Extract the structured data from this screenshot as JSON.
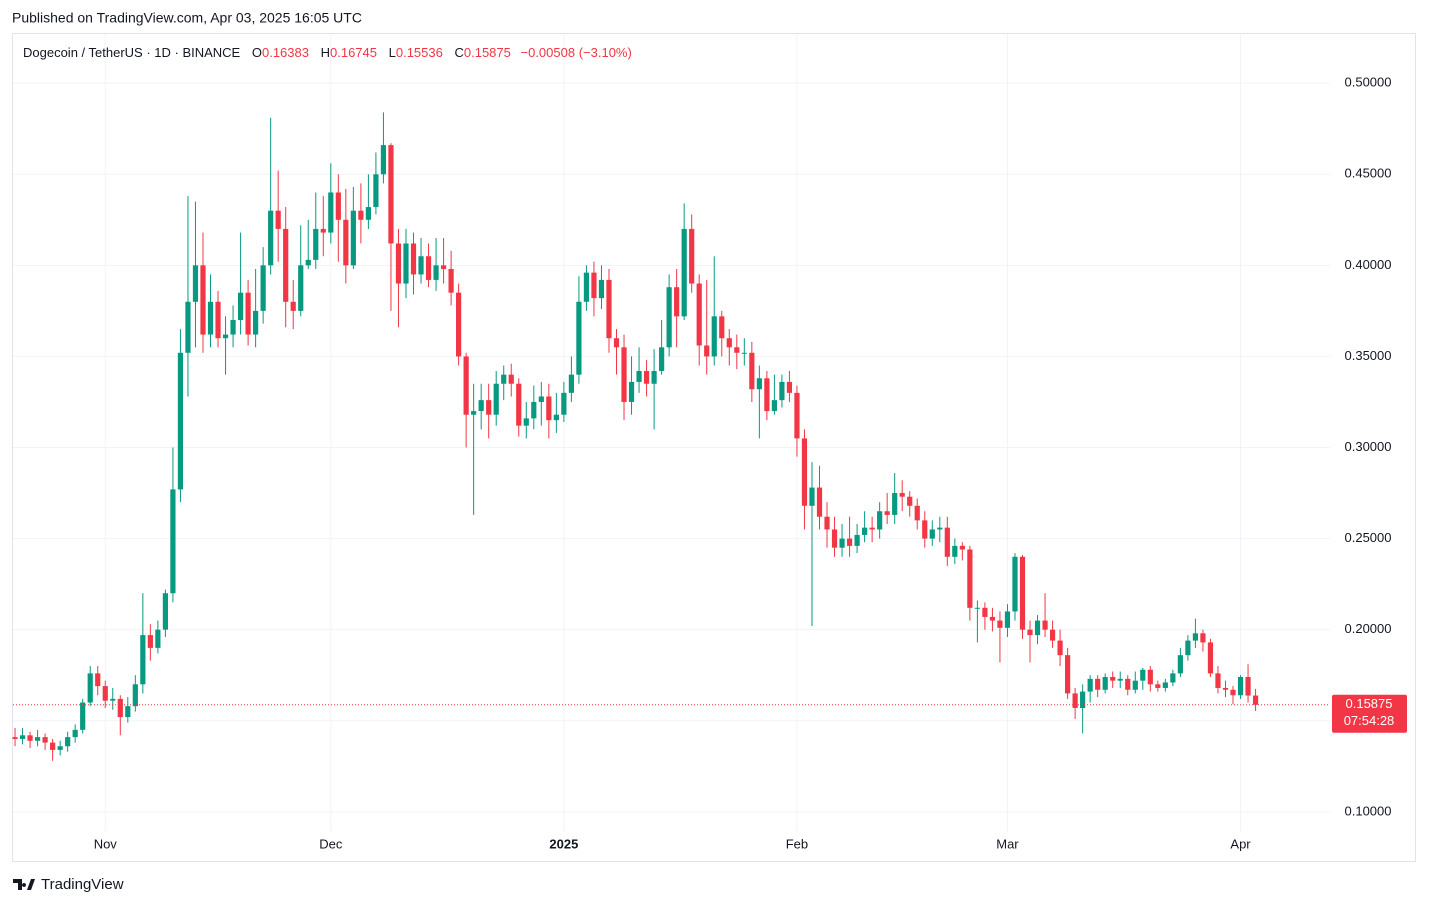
{
  "published": "Published on TradingView.com, Apr 03, 2025 16:05 UTC",
  "brand": "TradingView",
  "chart_data": {
    "type": "candlestick",
    "title": "Dogecoin / TetherUS · 1D · BINANCE",
    "quote": {
      "o_label": "O",
      "o": "0.16383",
      "h_label": "H",
      "h": "0.16745",
      "l_label": "L",
      "l": "0.15536",
      "c_label": "C",
      "c": "0.15875",
      "change": "−0.00508 (−3.10%)"
    },
    "up_color": "#089981",
    "down_color": "#f23645",
    "last_price": 0.15875,
    "countdown": "07:54:28",
    "grid": true,
    "xlim": [
      -0.27,
      174.9
    ],
    "xticks": [
      {
        "value": 12,
        "label": "Nov"
      },
      {
        "value": 42,
        "label": "Dec"
      },
      {
        "value": 73,
        "label": "2025"
      },
      {
        "value": 104,
        "label": "Feb"
      },
      {
        "value": 132,
        "label": "Mar"
      },
      {
        "value": 163,
        "label": "Apr"
      }
    ],
    "ylim": [
      0.073,
      0.527
    ],
    "yticks": [
      {
        "value": 0.1,
        "label": "0.10000"
      },
      {
        "value": 0.15,
        "label": "0.15000"
      },
      {
        "value": 0.2,
        "label": "0.20000"
      },
      {
        "value": 0.25,
        "label": "0.25000"
      },
      {
        "value": 0.3,
        "label": "0.30000"
      },
      {
        "value": 0.35,
        "label": "0.35000"
      },
      {
        "value": 0.4,
        "label": "0.40000"
      },
      {
        "value": 0.45,
        "label": "0.45000"
      },
      {
        "value": 0.5,
        "label": "0.50000"
      }
    ],
    "open": [
      0.141,
      0.14,
      0.142,
      0.139,
      0.141,
      0.138,
      0.134,
      0.136,
      0.141,
      0.145,
      0.16,
      0.176,
      0.169,
      0.161,
      0.162,
      0.152,
      0.158,
      0.17,
      0.197,
      0.19,
      0.2,
      0.22,
      0.277,
      0.352,
      0.38,
      0.4,
      0.362,
      0.38,
      0.36,
      0.362,
      0.37,
      0.385,
      0.362,
      0.375,
      0.4,
      0.43,
      0.42,
      0.38,
      0.375,
      0.4,
      0.403,
      0.42,
      0.418,
      0.44,
      0.425,
      0.4,
      0.43,
      0.425,
      0.432,
      0.45,
      0.466,
      0.412,
      0.39,
      0.412,
      0.395,
      0.405,
      0.392,
      0.4,
      0.398,
      0.385,
      0.35,
      0.318,
      0.32,
      0.326,
      0.318,
      0.335,
      0.34,
      0.335,
      0.312,
      0.316,
      0.325,
      0.328,
      0.315,
      0.318,
      0.33,
      0.34,
      0.38,
      0.396,
      0.382,
      0.392,
      0.36,
      0.355,
      0.325,
      0.336,
      0.342,
      0.335,
      0.342,
      0.355,
      0.388,
      0.372,
      0.42,
      0.39,
      0.356,
      0.35,
      0.372,
      0.36,
      0.355,
      0.352,
      0.352,
      0.332,
      0.338,
      0.32,
      0.326,
      0.336,
      0.33,
      0.305,
      0.268,
      0.278,
      0.262,
      0.255,
      0.245,
      0.25,
      0.246,
      0.252,
      0.256,
      0.255,
      0.265,
      0.263,
      0.275,
      0.273,
      0.268,
      0.26,
      0.25,
      0.255,
      0.256,
      0.24,
      0.246,
      0.244,
      0.212,
      0.212,
      0.207,
      0.205,
      0.201,
      0.21,
      0.24,
      0.2,
      0.197,
      0.205,
      0.2,
      0.194,
      0.186,
      0.165,
      0.157,
      0.166,
      0.173,
      0.167,
      0.174,
      0.172,
      0.173,
      0.167,
      0.172,
      0.178,
      0.17,
      0.168,
      0.171,
      0.176,
      0.186,
      0.194,
      0.198,
      0.193,
      0.176,
      0.168,
      0.167,
      0.164,
      0.174,
      0.16383
    ],
    "high": [
      0.146,
      0.146,
      0.144,
      0.145,
      0.143,
      0.14,
      0.139,
      0.144,
      0.148,
      0.162,
      0.18,
      0.18,
      0.172,
      0.168,
      0.164,
      0.163,
      0.175,
      0.22,
      0.203,
      0.205,
      0.222,
      0.3,
      0.365,
      0.438,
      0.435,
      0.418,
      0.395,
      0.386,
      0.372,
      0.378,
      0.418,
      0.392,
      0.398,
      0.41,
      0.481,
      0.452,
      0.432,
      0.392,
      0.422,
      0.425,
      0.44,
      0.438,
      0.456,
      0.45,
      0.442,
      0.443,
      0.445,
      0.45,
      0.462,
      0.484,
      0.467,
      0.42,
      0.42,
      0.418,
      0.415,
      0.412,
      0.415,
      0.415,
      0.408,
      0.39,
      0.352,
      0.335,
      0.335,
      0.335,
      0.342,
      0.345,
      0.346,
      0.338,
      0.325,
      0.334,
      0.336,
      0.335,
      0.33,
      0.336,
      0.35,
      0.394,
      0.4,
      0.402,
      0.4,
      0.398,
      0.365,
      0.362,
      0.35,
      0.355,
      0.348,
      0.354,
      0.37,
      0.395,
      0.398,
      0.434,
      0.428,
      0.395,
      0.392,
      0.405,
      0.375,
      0.365,
      0.362,
      0.36,
      0.358,
      0.345,
      0.342,
      0.34,
      0.34,
      0.342,
      0.334,
      0.31,
      0.292,
      0.29,
      0.27,
      0.262,
      0.258,
      0.262,
      0.258,
      0.265,
      0.262,
      0.27,
      0.275,
      0.286,
      0.282,
      0.276,
      0.272,
      0.265,
      0.26,
      0.262,
      0.262,
      0.25,
      0.248,
      0.246,
      0.216,
      0.215,
      0.212,
      0.21,
      0.214,
      0.242,
      0.241,
      0.205,
      0.208,
      0.22,
      0.205,
      0.2,
      0.19,
      0.168,
      0.17,
      0.175,
      0.175,
      0.176,
      0.177,
      0.177,
      0.175,
      0.177,
      0.179,
      0.18,
      0.172,
      0.173,
      0.178,
      0.19,
      0.197,
      0.206,
      0.2,
      0.195,
      0.18,
      0.172,
      0.169,
      0.175,
      0.181,
      0.16745
    ],
    "low": [
      0.136,
      0.137,
      0.135,
      0.136,
      0.134,
      0.128,
      0.131,
      0.133,
      0.138,
      0.143,
      0.158,
      0.164,
      0.157,
      0.156,
      0.142,
      0.149,
      0.155,
      0.165,
      0.183,
      0.187,
      0.196,
      0.215,
      0.27,
      0.328,
      0.355,
      0.352,
      0.355,
      0.355,
      0.34,
      0.355,
      0.362,
      0.356,
      0.355,
      0.368,
      0.395,
      0.402,
      0.366,
      0.365,
      0.372,
      0.398,
      0.398,
      0.405,
      0.412,
      0.402,
      0.39,
      0.398,
      0.412,
      0.42,
      0.428,
      0.445,
      0.375,
      0.366,
      0.382,
      0.384,
      0.39,
      0.388,
      0.386,
      0.39,
      0.378,
      0.345,
      0.3,
      0.263,
      0.31,
      0.305,
      0.312,
      0.326,
      0.328,
      0.306,
      0.305,
      0.31,
      0.312,
      0.305,
      0.308,
      0.314,
      0.325,
      0.335,
      0.375,
      0.372,
      0.376,
      0.352,
      0.34,
      0.315,
      0.318,
      0.33,
      0.328,
      0.31,
      0.34,
      0.35,
      0.355,
      0.37,
      0.385,
      0.345,
      0.34,
      0.345,
      0.35,
      0.345,
      0.343,
      0.345,
      0.325,
      0.305,
      0.315,
      0.318,
      0.322,
      0.325,
      0.295,
      0.255,
      0.202,
      0.255,
      0.245,
      0.24,
      0.24,
      0.24,
      0.242,
      0.248,
      0.248,
      0.25,
      0.258,
      0.258,
      0.265,
      0.262,
      0.255,
      0.245,
      0.246,
      0.248,
      0.235,
      0.236,
      0.238,
      0.205,
      0.193,
      0.2,
      0.199,
      0.182,
      0.196,
      0.205,
      0.195,
      0.182,
      0.192,
      0.196,
      0.19,
      0.18,
      0.162,
      0.151,
      0.143,
      0.16,
      0.163,
      0.165,
      0.168,
      0.168,
      0.164,
      0.165,
      0.167,
      0.166,
      0.166,
      0.166,
      0.169,
      0.174,
      0.183,
      0.19,
      0.188,
      0.174,
      0.165,
      0.163,
      0.159,
      0.162,
      0.16,
      0.15536
    ],
    "close": [
      0.14,
      0.142,
      0.139,
      0.141,
      0.138,
      0.134,
      0.136,
      0.141,
      0.145,
      0.16,
      0.176,
      0.169,
      0.161,
      0.162,
      0.152,
      0.158,
      0.17,
      0.197,
      0.19,
      0.2,
      0.22,
      0.277,
      0.352,
      0.38,
      0.4,
      0.362,
      0.38,
      0.36,
      0.362,
      0.37,
      0.385,
      0.362,
      0.375,
      0.4,
      0.43,
      0.42,
      0.38,
      0.375,
      0.4,
      0.403,
      0.42,
      0.418,
      0.44,
      0.425,
      0.4,
      0.43,
      0.425,
      0.432,
      0.45,
      0.466,
      0.412,
      0.39,
      0.412,
      0.395,
      0.405,
      0.392,
      0.4,
      0.398,
      0.385,
      0.35,
      0.318,
      0.32,
      0.326,
      0.318,
      0.335,
      0.34,
      0.335,
      0.312,
      0.316,
      0.325,
      0.328,
      0.315,
      0.318,
      0.33,
      0.34,
      0.38,
      0.396,
      0.382,
      0.392,
      0.36,
      0.355,
      0.325,
      0.336,
      0.342,
      0.335,
      0.342,
      0.355,
      0.388,
      0.372,
      0.42,
      0.39,
      0.356,
      0.35,
      0.372,
      0.36,
      0.355,
      0.352,
      0.352,
      0.332,
      0.338,
      0.32,
      0.326,
      0.336,
      0.33,
      0.305,
      0.268,
      0.278,
      0.262,
      0.255,
      0.245,
      0.25,
      0.246,
      0.252,
      0.256,
      0.255,
      0.265,
      0.263,
      0.275,
      0.273,
      0.268,
      0.26,
      0.25,
      0.255,
      0.256,
      0.24,
      0.246,
      0.244,
      0.212,
      0.212,
      0.207,
      0.205,
      0.201,
      0.21,
      0.24,
      0.2,
      0.197,
      0.205,
      0.2,
      0.194,
      0.186,
      0.165,
      0.157,
      0.166,
      0.173,
      0.167,
      0.174,
      0.172,
      0.173,
      0.167,
      0.172,
      0.178,
      0.17,
      0.168,
      0.171,
      0.176,
      0.186,
      0.194,
      0.198,
      0.193,
      0.176,
      0.168,
      0.167,
      0.164,
      0.174,
      0.16383,
      0.15875
    ]
  }
}
